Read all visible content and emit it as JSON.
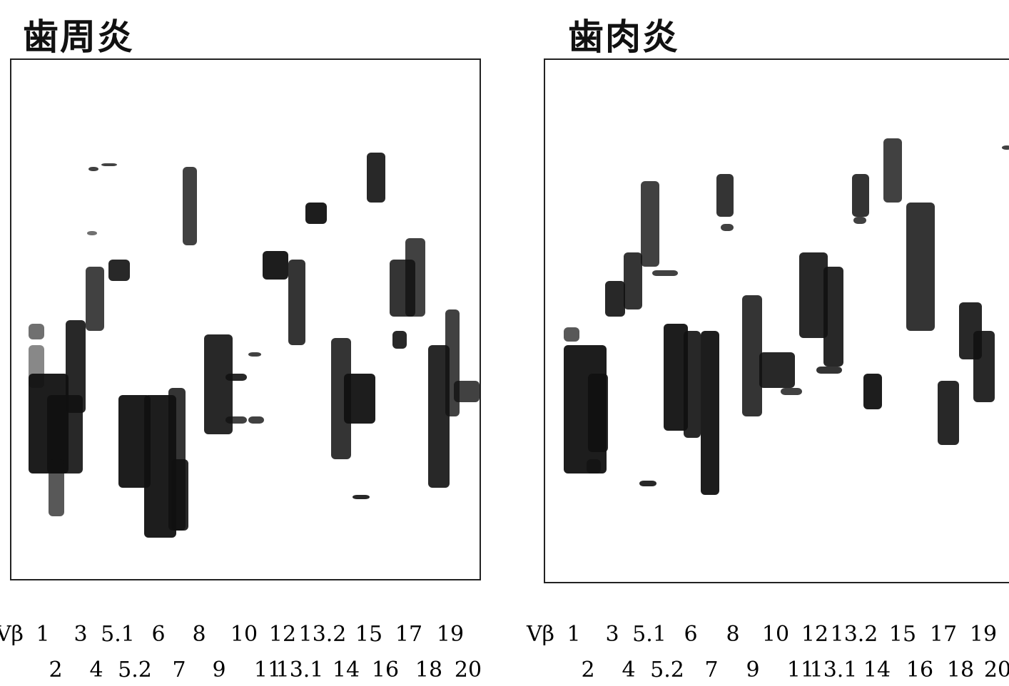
{
  "panels": [
    {
      "title": "歯周炎",
      "row1_prefix": "Vβ",
      "row1": [
        "1",
        "3",
        "5.1",
        "6",
        "8",
        "10",
        "12",
        "13.2",
        "15",
        "17",
        "19"
      ],
      "row2": [
        "2",
        "4",
        "5.2",
        "7",
        "9",
        "11",
        "13.1",
        "14",
        "16",
        "18",
        "20"
      ],
      "ink_color": "#111111"
    },
    {
      "title": "歯肉炎",
      "row1_prefix": "Vβ",
      "row1": [
        "1",
        "3",
        "5.1",
        "6",
        "8",
        "10",
        "12",
        "13.2",
        "15",
        "17",
        "19"
      ],
      "row2": [
        "2",
        "4",
        "5.2",
        "7",
        "9",
        "11",
        "13.1",
        "14",
        "16",
        "18",
        "20"
      ],
      "ink_color": "#111111"
    }
  ]
}
